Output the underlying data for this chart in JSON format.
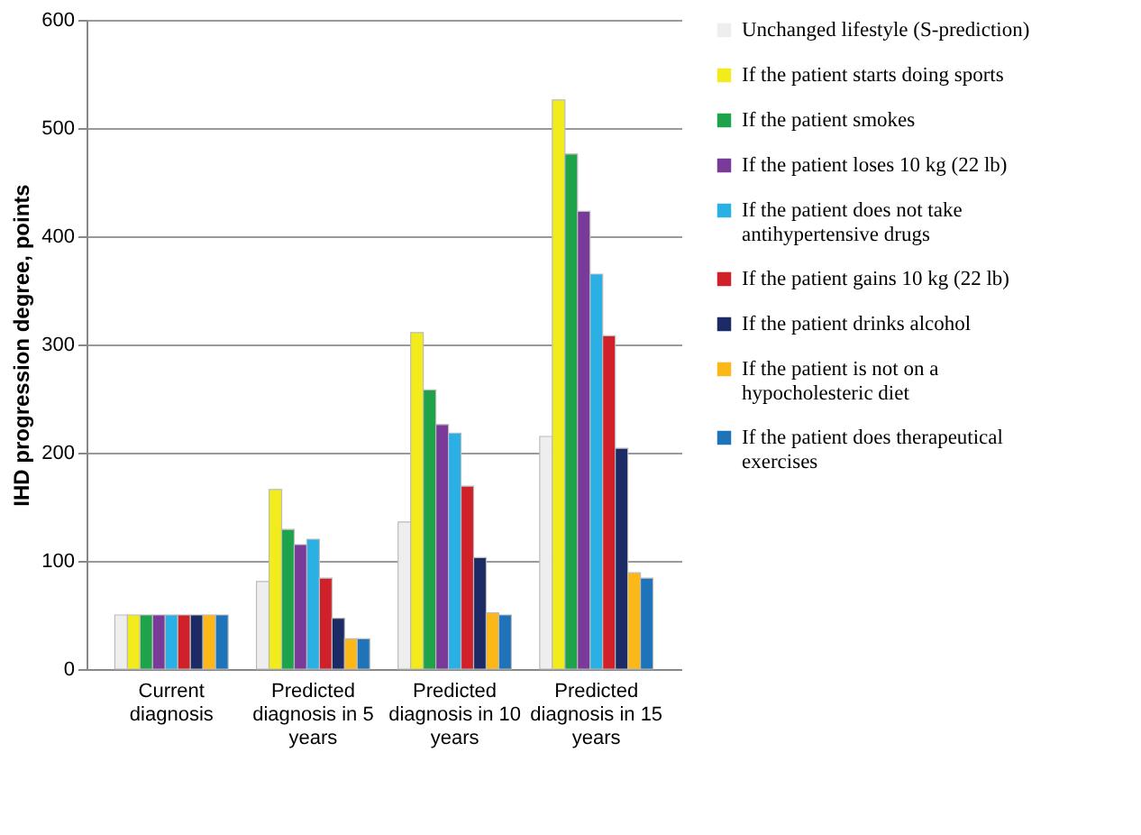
{
  "chart_data": {
    "type": "bar",
    "ylabel": "IHD progression degree, points",
    "categories": [
      "Current diagnosis",
      "Predicted diagnosis in 5 years",
      "Predicted diagnosis in 10 years",
      "Predicted diagnosis in 15 years"
    ],
    "series": [
      {
        "name": "Unchanged lifestyle (S-prediction)",
        "color": "#eeeeee",
        "values": [
          50,
          81,
          136,
          215
        ]
      },
      {
        "name": "If the patient starts doing sports",
        "color": "#f2ec1c",
        "values": [
          50,
          166,
          311,
          526
        ]
      },
      {
        "name": "If the patient smokes",
        "color": "#1fa34a",
        "values": [
          50,
          129,
          258,
          476
        ]
      },
      {
        "name": "If the patient loses 10 kg (22 lb)",
        "color": "#7a3a9a",
        "values": [
          50,
          115,
          226,
          423
        ]
      },
      {
        "name": "If the patient does not take antihypertensive drugs",
        "color": "#2bb0e6",
        "values": [
          50,
          120,
          218,
          365
        ]
      },
      {
        "name": "If the patient gains 10 kg (22 lb)",
        "color": "#d0202a",
        "values": [
          50,
          84,
          169,
          308
        ]
      },
      {
        "name": "If the patient drinks alcohol",
        "color": "#1c2a66",
        "values": [
          50,
          47,
          103,
          204
        ]
      },
      {
        "name": "If the patient is not on a hypocholesteric diet",
        "color": "#fbb818",
        "values": [
          50,
          28,
          52,
          89
        ]
      },
      {
        "name": "If the patient does therapeutical exercises",
        "color": "#1f73b8",
        "values": [
          50,
          28,
          50,
          84
        ]
      }
    ],
    "ylim": [
      0,
      600
    ],
    "yticks": [
      0,
      100,
      200,
      300,
      400,
      500,
      600
    ],
    "grid": "y",
    "legend": "right"
  }
}
